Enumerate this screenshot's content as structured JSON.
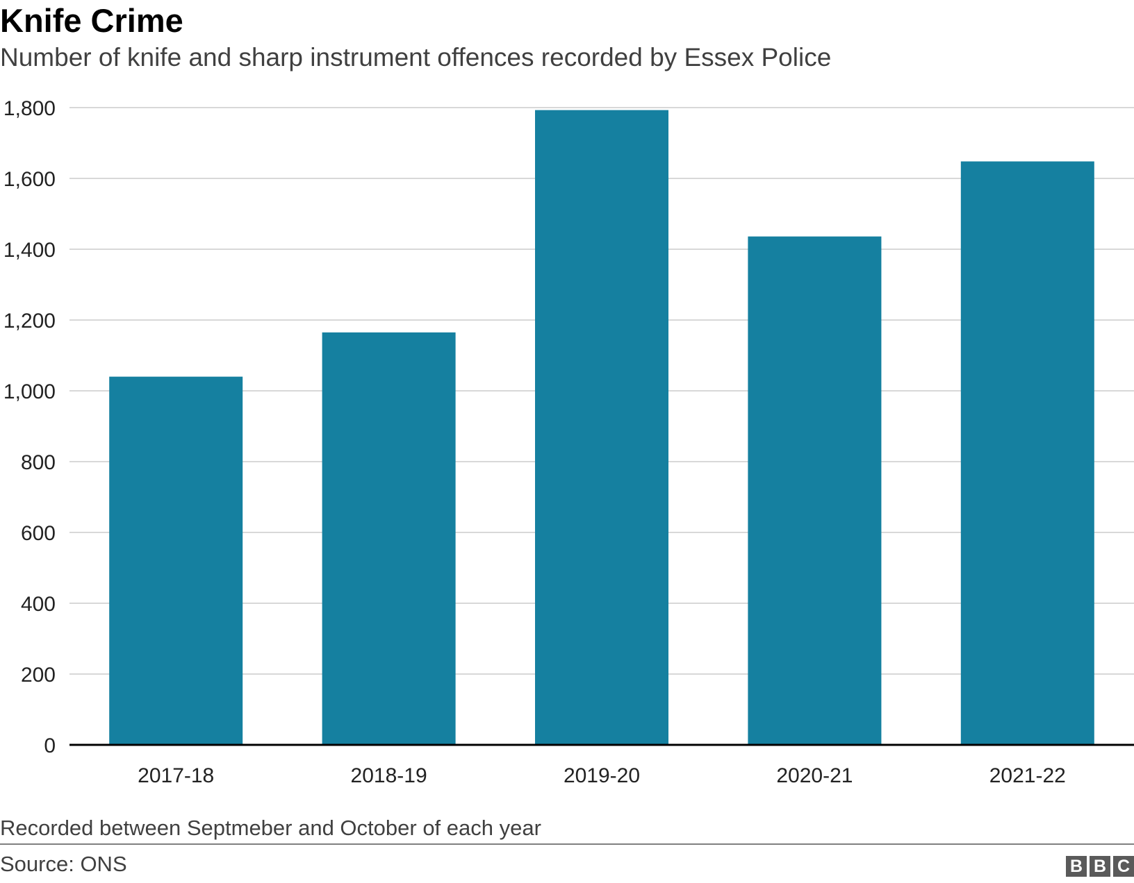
{
  "header": {
    "title": "Knife Crime",
    "subtitle": "Number of knife and sharp instrument offences recorded by Essex Police"
  },
  "footer": {
    "note": "Recorded between Septmeber and October of each year",
    "source": "Source: ONS",
    "logo_letters": [
      "B",
      "B",
      "C"
    ]
  },
  "colors": {
    "bar": "#1580a0",
    "grid": "#cccccc",
    "axis": "#000000"
  },
  "chart_data": {
    "type": "bar",
    "title": "Knife Crime",
    "subtitle": "Number of knife and sharp instrument offences recorded by Essex Police",
    "categories": [
      "2017-18",
      "2018-19",
      "2019-20",
      "2020-21",
      "2021-22"
    ],
    "values": [
      1040,
      1165,
      1793,
      1436,
      1648
    ],
    "xlabel": "",
    "ylabel": "",
    "ylim": [
      0,
      1800
    ],
    "yticks": [
      0,
      200,
      400,
      600,
      800,
      1000,
      1200,
      1400,
      1600,
      1800
    ],
    "ytick_labels": [
      "0",
      "200",
      "400",
      "600",
      "800",
      "1,000",
      "1,200",
      "1,400",
      "1,600",
      "1,800"
    ],
    "grid": true,
    "legend": "none"
  }
}
